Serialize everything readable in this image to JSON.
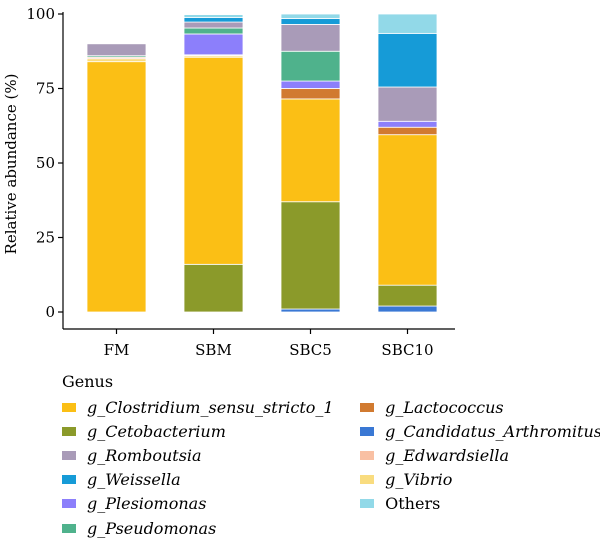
{
  "chart_data": {
    "type": "bar",
    "stacked": true,
    "ylabel": "Relative abundance (%)",
    "xlabel": "",
    "ylim": [
      0,
      100
    ],
    "yticks": [
      0,
      25,
      50,
      75,
      100
    ],
    "categories": [
      "FM",
      "SBM",
      "SBC5",
      "SBC10"
    ],
    "legend_title": "Genus",
    "legend_position": "bottom",
    "series": [
      {
        "name": "g_Candidatus_Arthromitus",
        "color": "#3a78d4",
        "italic": true,
        "values": [
          0,
          0,
          1,
          2
        ]
      },
      {
        "name": "g_Cetobacterium",
        "color": "#8b9a2a",
        "italic": true,
        "values": [
          0,
          16,
          36,
          7
        ]
      },
      {
        "name": "g_Clostridium_sensu_stricto_1",
        "color": "#fbbf15",
        "italic": true,
        "values": [
          84,
          69.5,
          34.5,
          50.5
        ]
      },
      {
        "name": "g_Vibrio",
        "color": "#f9dc7f",
        "italic": true,
        "values": [
          1,
          0.5,
          0,
          0
        ]
      },
      {
        "name": "g_Edwardsiella",
        "color": "#f9c0a3",
        "italic": true,
        "values": [
          0.5,
          0.3,
          0,
          0
        ]
      },
      {
        "name": "g_Lactococcus",
        "color": "#d17a30",
        "italic": true,
        "values": [
          0,
          0,
          3.5,
          2.5
        ]
      },
      {
        "name": "g_Plesiomonas",
        "color": "#8c7ffb",
        "italic": true,
        "values": [
          0,
          7,
          2.5,
          2
        ]
      },
      {
        "name": "g_Pseudomonas",
        "color": "#4fb28c",
        "italic": true,
        "values": [
          0.5,
          2,
          10,
          0
        ]
      },
      {
        "name": "g_Romboutsia",
        "color": "#a99bb8",
        "italic": true,
        "values": [
          4,
          2,
          9,
          11.5
        ]
      },
      {
        "name": "g_Weissella",
        "color": "#169bd7",
        "italic": true,
        "values": [
          0,
          1.5,
          2,
          18
        ]
      },
      {
        "name": "Others",
        "color": "#92d9e8",
        "italic": false,
        "values": [
          0,
          1,
          1.5,
          6.5
        ]
      }
    ],
    "legend_order": [
      [
        "g_Clostridium_sensu_stricto_1",
        "g_Cetobacterium",
        "g_Romboutsia",
        "g_Weissella",
        "g_Plesiomonas",
        "g_Pseudomonas"
      ],
      [
        "g_Lactococcus",
        "g_Candidatus_Arthromitus",
        "g_Edwardsiella",
        "g_Vibrio",
        "Others"
      ]
    ]
  }
}
